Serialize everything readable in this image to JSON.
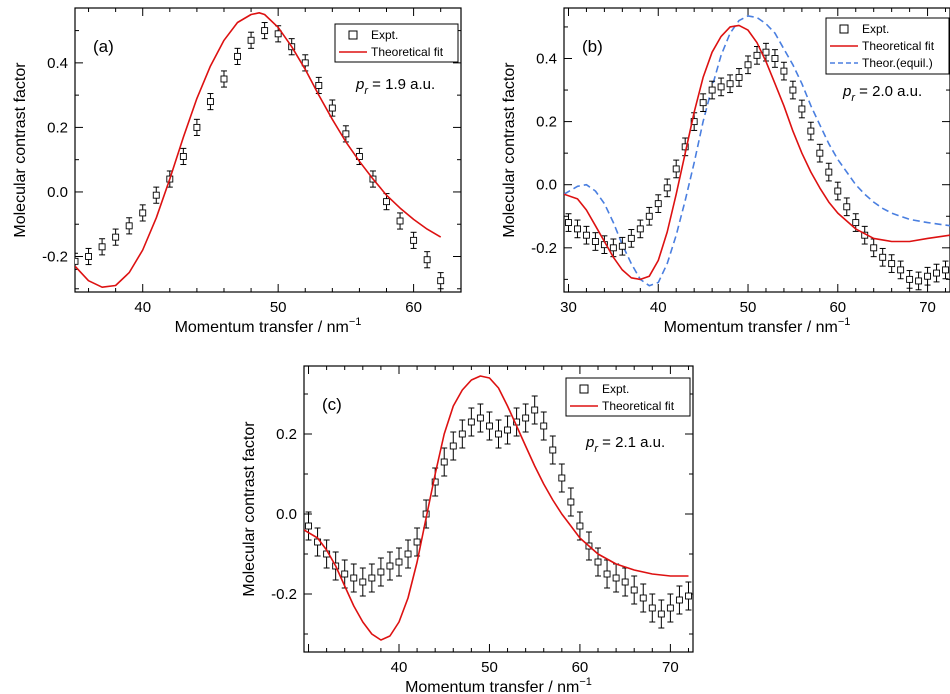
{
  "chart_data": [
    {
      "type": "scatter",
      "panel_label": "(a)",
      "xlabel": "Momentum transfer / nm",
      "xlabel_sup": "−1",
      "ylabel": "Molecular contrast factor",
      "xlim": [
        35,
        63.5
      ],
      "ylim": [
        -0.31,
        0.57
      ],
      "xticks": [
        40,
        50,
        60
      ],
      "yticks": [
        -0.2,
        0.0,
        0.2,
        0.4
      ],
      "ytick_labels": [
        "-0.2",
        "0.0",
        "0.2",
        "0.4"
      ],
      "annotation": {
        "italic": "p",
        "sub": "r",
        "rest": " = 1.9 a.u."
      },
      "legend": [
        {
          "label": "Expt.",
          "kind": "square"
        },
        {
          "label": "Theoretical fit",
          "kind": "line",
          "color": "#dd1111"
        }
      ],
      "expt": {
        "x": [
          35,
          36,
          37,
          38,
          39,
          40,
          41,
          42,
          43,
          44,
          45,
          46,
          47,
          48,
          49,
          50,
          51,
          52,
          53,
          54,
          55,
          56,
          57,
          58,
          59,
          60,
          61,
          62
        ],
        "y": [
          -0.215,
          -0.2,
          -0.17,
          -0.14,
          -0.105,
          -0.065,
          -0.01,
          0.04,
          0.11,
          0.2,
          0.28,
          0.35,
          0.42,
          0.47,
          0.5,
          0.49,
          0.45,
          0.4,
          0.33,
          0.26,
          0.18,
          0.11,
          0.04,
          -0.03,
          -0.09,
          -0.15,
          -0.21,
          -0.275
        ],
        "err": 0.025
      },
      "fit": {
        "color": "#dd1111",
        "x": [
          35,
          36,
          37,
          38,
          39,
          40,
          41,
          42,
          43,
          44,
          45,
          46,
          47,
          48,
          48.6,
          49,
          50,
          51,
          52,
          53,
          54,
          55,
          56,
          57,
          58,
          59,
          60,
          61,
          62
        ],
        "y": [
          -0.23,
          -0.275,
          -0.295,
          -0.29,
          -0.25,
          -0.18,
          -0.08,
          0.04,
          0.17,
          0.29,
          0.39,
          0.47,
          0.525,
          0.55,
          0.555,
          0.55,
          0.51,
          0.45,
          0.38,
          0.3,
          0.225,
          0.155,
          0.095,
          0.04,
          -0.01,
          -0.05,
          -0.085,
          -0.115,
          -0.14
        ]
      }
    },
    {
      "type": "scatter",
      "panel_label": "(b)",
      "xlabel": "Momentum transfer / nm",
      "xlabel_sup": "−1",
      "ylabel": "Molecular contrast factor",
      "xlim": [
        29.5,
        72.5
      ],
      "ylim": [
        -0.34,
        0.56
      ],
      "xticks": [
        30,
        40,
        50,
        60,
        70
      ],
      "yticks": [
        -0.2,
        0.0,
        0.2,
        0.4
      ],
      "ytick_labels": [
        "-0.2",
        "0.0",
        "0.2",
        "0.4"
      ],
      "annotation": {
        "italic": "p",
        "sub": "r",
        "rest": " = 2.0 a.u."
      },
      "legend": [
        {
          "label": "Expt.",
          "kind": "square"
        },
        {
          "label": "Theoretical fit",
          "kind": "line",
          "color": "#dd1111"
        },
        {
          "label": "Theor.(equil.)",
          "kind": "dash",
          "color": "#4a7fe0"
        }
      ],
      "expt": {
        "x": [
          30,
          31,
          32,
          33,
          34,
          35,
          36,
          37,
          38,
          39,
          40,
          41,
          42,
          43,
          44,
          45,
          46,
          47,
          48,
          49,
          50,
          51,
          52,
          53,
          54,
          55,
          56,
          57,
          58,
          59,
          60,
          61,
          62,
          63,
          64,
          65,
          66,
          67,
          68,
          69,
          70,
          71,
          72
        ],
        "y": [
          -0.12,
          -0.14,
          -0.16,
          -0.18,
          -0.19,
          -0.2,
          -0.195,
          -0.17,
          -0.14,
          -0.1,
          -0.06,
          -0.01,
          0.05,
          0.12,
          0.2,
          0.26,
          0.3,
          0.31,
          0.32,
          0.34,
          0.38,
          0.41,
          0.42,
          0.4,
          0.36,
          0.3,
          0.24,
          0.17,
          0.1,
          0.04,
          -0.02,
          -0.07,
          -0.12,
          -0.16,
          -0.2,
          -0.23,
          -0.25,
          -0.27,
          -0.3,
          -0.305,
          -0.29,
          -0.28,
          -0.27
        ],
        "err": 0.028
      },
      "fit": {
        "color": "#dd1111",
        "x": [
          29.5,
          31,
          32,
          33,
          34,
          35,
          36,
          37,
          38,
          39,
          40,
          41,
          42,
          43,
          44,
          45,
          46,
          47,
          48,
          49,
          50,
          51,
          52,
          53,
          54,
          55,
          56,
          57,
          58,
          59,
          60,
          62,
          64,
          66,
          68,
          70,
          72.5
        ],
        "y": [
          -0.03,
          -0.045,
          -0.08,
          -0.13,
          -0.18,
          -0.23,
          -0.27,
          -0.295,
          -0.3,
          -0.29,
          -0.24,
          -0.15,
          -0.03,
          0.1,
          0.23,
          0.34,
          0.42,
          0.47,
          0.5,
          0.505,
          0.49,
          0.45,
          0.39,
          0.32,
          0.25,
          0.17,
          0.1,
          0.04,
          -0.01,
          -0.055,
          -0.09,
          -0.14,
          -0.17,
          -0.18,
          -0.18,
          -0.17,
          -0.16
        ]
      },
      "equil": {
        "color": "#4a7fe0",
        "x": [
          29.5,
          31,
          32,
          33,
          34,
          35,
          36,
          37,
          38,
          39,
          40,
          41,
          42,
          43,
          44,
          45,
          46,
          47,
          48,
          49,
          50,
          51,
          52,
          53,
          54,
          55,
          56,
          57,
          58,
          59,
          60,
          61,
          62,
          63,
          64,
          65,
          66,
          67,
          68,
          70,
          72.5
        ],
        "y": [
          -0.03,
          -0.005,
          0.0,
          -0.02,
          -0.06,
          -0.12,
          -0.19,
          -0.25,
          -0.3,
          -0.32,
          -0.31,
          -0.25,
          -0.16,
          -0.05,
          0.07,
          0.2,
          0.31,
          0.41,
          0.48,
          0.52,
          0.535,
          0.53,
          0.51,
          0.48,
          0.43,
          0.38,
          0.32,
          0.25,
          0.19,
          0.13,
          0.08,
          0.04,
          0.0,
          -0.03,
          -0.055,
          -0.075,
          -0.09,
          -0.1,
          -0.11,
          -0.12,
          -0.13
        ]
      }
    },
    {
      "type": "scatter",
      "panel_label": "(c)",
      "xlabel": "Momentum transfer / nm",
      "xlabel_sup": "−1",
      "ylabel": "Molecular contrast factor",
      "xlim": [
        29.5,
        72.5
      ],
      "ylim": [
        -0.345,
        0.37
      ],
      "xticks": [
        40,
        50,
        60,
        70
      ],
      "yticks": [
        -0.2,
        0.0,
        0.2
      ],
      "ytick_labels": [
        "-0.2",
        "0.0",
        "0.2"
      ],
      "annotation": {
        "italic": "p",
        "sub": "r",
        "rest": " = 2.1 a.u."
      },
      "legend": [
        {
          "label": "Expt.",
          "kind": "square"
        },
        {
          "label": "Theoretical fit",
          "kind": "line",
          "color": "#dd1111"
        }
      ],
      "expt": {
        "x": [
          30,
          31,
          32,
          33,
          34,
          35,
          36,
          37,
          38,
          39,
          40,
          41,
          42,
          43,
          44,
          45,
          46,
          47,
          48,
          49,
          50,
          51,
          52,
          53,
          54,
          55,
          56,
          57,
          58,
          59,
          60,
          61,
          62,
          63,
          64,
          65,
          66,
          67,
          68,
          69,
          70,
          71,
          72
        ],
        "y": [
          -0.03,
          -0.07,
          -0.1,
          -0.13,
          -0.15,
          -0.16,
          -0.17,
          -0.16,
          -0.145,
          -0.13,
          -0.12,
          -0.1,
          -0.07,
          0.0,
          0.08,
          0.13,
          0.17,
          0.2,
          0.23,
          0.24,
          0.22,
          0.2,
          0.21,
          0.23,
          0.24,
          0.26,
          0.22,
          0.16,
          0.09,
          0.03,
          -0.03,
          -0.08,
          -0.12,
          -0.15,
          -0.16,
          -0.17,
          -0.19,
          -0.21,
          -0.235,
          -0.25,
          -0.235,
          -0.215,
          -0.205
        ],
        "err": 0.035
      },
      "fit": {
        "color": "#dd1111",
        "x": [
          29.5,
          31,
          32,
          33,
          34,
          35,
          36,
          37,
          38,
          39,
          40,
          41,
          42,
          43,
          44,
          45,
          46,
          47,
          48,
          49,
          50,
          51,
          52,
          53,
          54,
          55,
          56,
          57,
          58,
          59,
          60,
          62,
          64,
          66,
          68,
          70,
          72
        ],
        "y": [
          -0.04,
          -0.06,
          -0.09,
          -0.13,
          -0.18,
          -0.23,
          -0.27,
          -0.3,
          -0.315,
          -0.305,
          -0.27,
          -0.21,
          -0.12,
          -0.01,
          0.1,
          0.2,
          0.27,
          0.31,
          0.335,
          0.345,
          0.34,
          0.315,
          0.27,
          0.22,
          0.17,
          0.12,
          0.075,
          0.035,
          0.0,
          -0.03,
          -0.06,
          -0.1,
          -0.125,
          -0.14,
          -0.15,
          -0.155,
          -0.155
        ]
      }
    }
  ]
}
